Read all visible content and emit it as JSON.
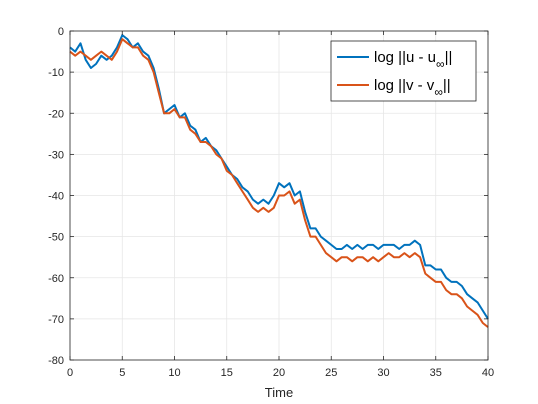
{
  "chart_data": {
    "type": "line",
    "xlabel": "Time",
    "ylabel": "",
    "title": "",
    "xlim": [
      0,
      40
    ],
    "ylim": [
      -80,
      0
    ],
    "xticks": [
      0,
      5,
      10,
      15,
      20,
      25,
      30,
      35,
      40
    ],
    "yticks": [
      -80,
      -70,
      -60,
      -50,
      -40,
      -30,
      -20,
      -10,
      0
    ],
    "grid": true,
    "legend_position": "top-right",
    "series": [
      {
        "name": "log ||u - u∞||",
        "name_main": "log ||u - u",
        "name_sub": "∞",
        "name_end": "||",
        "color": "#0072BD",
        "x": [
          0,
          0.5,
          1,
          1.5,
          2,
          2.5,
          3,
          3.5,
          4,
          4.5,
          5,
          5.5,
          6,
          6.5,
          7,
          7.5,
          8,
          8.5,
          9,
          9.5,
          10,
          10.5,
          11,
          11.5,
          12,
          12.5,
          13,
          13.5,
          14,
          14.5,
          15,
          15.5,
          16,
          16.5,
          17,
          17.5,
          18,
          18.5,
          19,
          19.5,
          20,
          20.5,
          21,
          21.5,
          22,
          22.5,
          23,
          23.5,
          24,
          24.5,
          25,
          25.5,
          26,
          26.5,
          27,
          27.5,
          28,
          28.5,
          29,
          29.5,
          30,
          30.5,
          31,
          31.5,
          32,
          32.5,
          33,
          33.5,
          34,
          34.5,
          35,
          35.5,
          36,
          36.5,
          37,
          37.5,
          38,
          38.5,
          39,
          39.5,
          40
        ],
        "y": [
          -4,
          -5,
          -3,
          -7,
          -9,
          -8,
          -6,
          -7,
          -6,
          -4,
          -1,
          -2,
          -4,
          -3,
          -5,
          -6,
          -9,
          -14,
          -20,
          -19,
          -18,
          -21,
          -20,
          -23,
          -24,
          -27,
          -26,
          -28,
          -29,
          -31,
          -33,
          -35,
          -36,
          -38,
          -39,
          -41,
          -42,
          -41,
          -42,
          -40,
          -37,
          -38,
          -37,
          -40,
          -39,
          -44,
          -48,
          -48,
          -50,
          -51,
          -52,
          -53,
          -53,
          -52,
          -53,
          -52,
          -53,
          -52,
          -52,
          -53,
          -52,
          -52,
          -52,
          -53,
          -52,
          -52,
          -51,
          -52,
          -57,
          -57,
          -58,
          -58,
          -60,
          -61,
          -61,
          -62,
          -64,
          -65,
          -66,
          -68,
          -70
        ]
      },
      {
        "name": "log ||v - v∞||",
        "name_main": "log ||v - v",
        "name_sub": "∞",
        "name_end": "||",
        "color": "#D95319",
        "x": [
          0,
          0.5,
          1,
          1.5,
          2,
          2.5,
          3,
          3.5,
          4,
          4.5,
          5,
          5.5,
          6,
          6.5,
          7,
          7.5,
          8,
          8.5,
          9,
          9.5,
          10,
          10.5,
          11,
          11.5,
          12,
          12.5,
          13,
          13.5,
          14,
          14.5,
          15,
          15.5,
          16,
          16.5,
          17,
          17.5,
          18,
          18.5,
          19,
          19.5,
          20,
          20.5,
          21,
          21.5,
          22,
          22.5,
          23,
          23.5,
          24,
          24.5,
          25,
          25.5,
          26,
          26.5,
          27,
          27.5,
          28,
          28.5,
          29,
          29.5,
          30,
          30.5,
          31,
          31.5,
          32,
          32.5,
          33,
          33.5,
          34,
          34.5,
          35,
          35.5,
          36,
          36.5,
          37,
          37.5,
          38,
          38.5,
          39,
          39.5,
          40
        ],
        "y": [
          -5,
          -6,
          -5,
          -6,
          -7,
          -6,
          -5,
          -6,
          -7,
          -5,
          -2,
          -3,
          -4,
          -4,
          -6,
          -7,
          -10,
          -15,
          -20,
          -20,
          -19,
          -21,
          -21,
          -24,
          -25,
          -27,
          -27,
          -28,
          -30,
          -31,
          -34,
          -35,
          -37,
          -39,
          -41,
          -43,
          -44,
          -43,
          -44,
          -43,
          -40,
          -40,
          -39,
          -42,
          -41,
          -46,
          -50,
          -50,
          -52,
          -54,
          -55,
          -56,
          -55,
          -55,
          -56,
          -55,
          -55,
          -56,
          -55,
          -56,
          -55,
          -54,
          -55,
          -55,
          -54,
          -55,
          -54,
          -55,
          -59,
          -60,
          -61,
          -61,
          -63,
          -64,
          -64,
          -65,
          -67,
          -68,
          -69,
          -71,
          -72
        ]
      }
    ]
  }
}
